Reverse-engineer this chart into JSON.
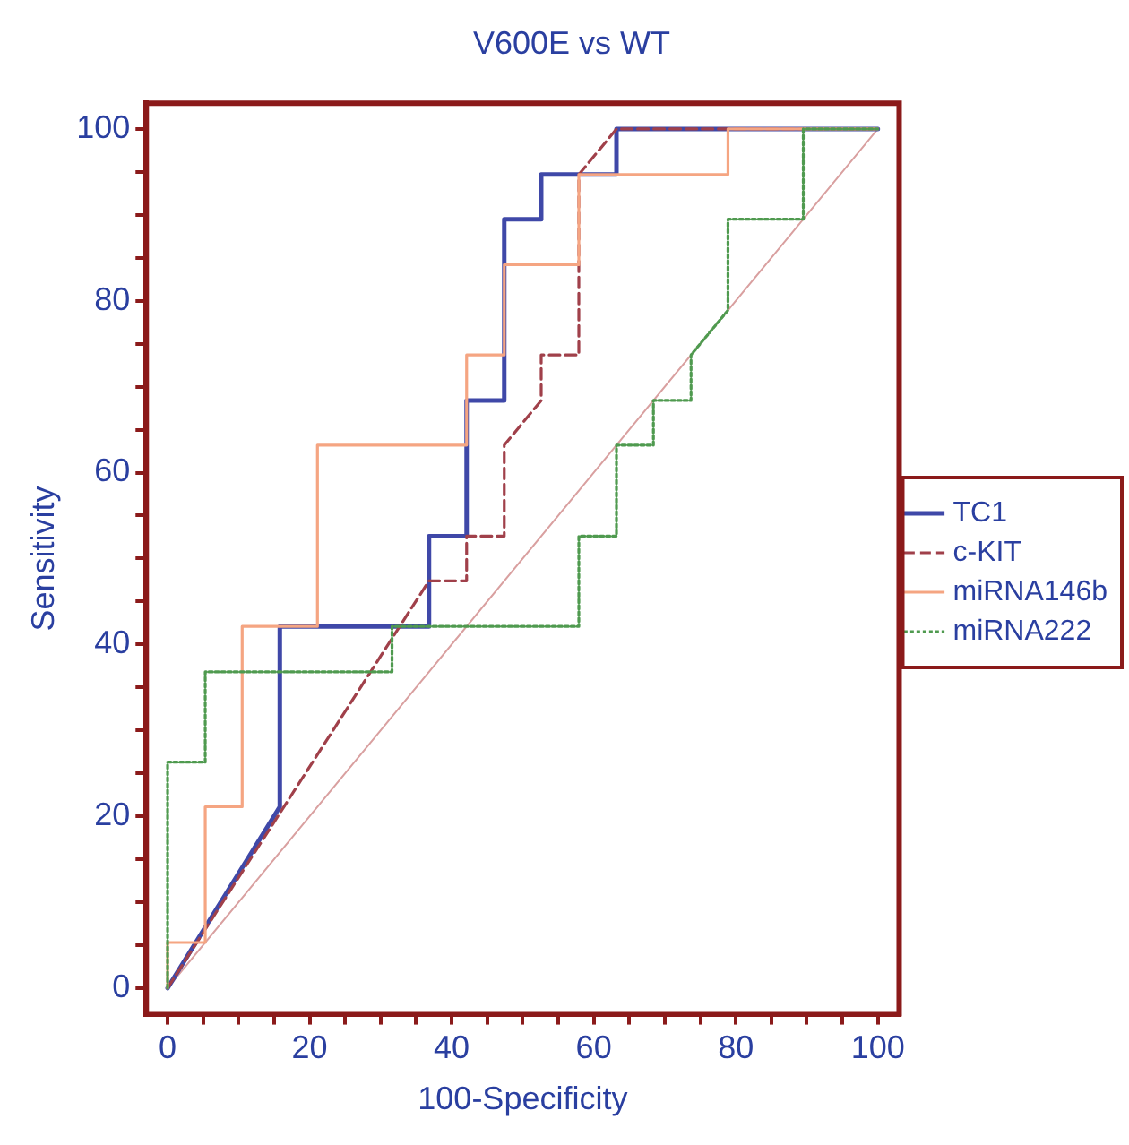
{
  "chart_data": {
    "type": "line",
    "title": "V600E vs WT",
    "xlabel": "100-Specificity",
    "ylabel": "Sensitivity",
    "xlim": [
      -3,
      103
    ],
    "ylim": [
      -3,
      103
    ],
    "xticks": [
      0,
      {
        "value": 5,
        "label": null
      },
      {
        "value": 10,
        "label": null
      },
      {
        "value": 15,
        "label": null
      },
      20,
      {
        "value": 25,
        "label": null
      },
      {
        "value": 30,
        "label": null
      },
      {
        "value": 35,
        "label": null
      },
      40,
      {
        "value": 45,
        "label": null
      },
      {
        "value": 50,
        "label": null
      },
      {
        "value": 55,
        "label": null
      },
      60,
      {
        "value": 65,
        "label": null
      },
      {
        "value": 70,
        "label": null
      },
      {
        "value": 75,
        "label": null
      },
      80,
      {
        "value": 85,
        "label": null
      },
      {
        "value": 90,
        "label": null
      },
      {
        "value": 95,
        "label": null
      },
      100
    ],
    "yticks": [
      0,
      {
        "value": 5,
        "label": null
      },
      {
        "value": 10,
        "label": null
      },
      {
        "value": 15,
        "label": null
      },
      20,
      {
        "value": 25,
        "label": null
      },
      {
        "value": 30,
        "label": null
      },
      {
        "value": 35,
        "label": null
      },
      40,
      {
        "value": 45,
        "label": null
      },
      {
        "value": 50,
        "label": null
      },
      {
        "value": 55,
        "label": null
      },
      60,
      {
        "value": 65,
        "label": null
      },
      {
        "value": 70,
        "label": null
      },
      {
        "value": 75,
        "label": null
      },
      80,
      {
        "value": 85,
        "label": null
      },
      {
        "value": 90,
        "label": null
      },
      {
        "value": 95,
        "label": null
      },
      100
    ],
    "grid": false,
    "legend": "right",
    "marker": "none",
    "series": [
      {
        "name": "TC1",
        "color": "#3f48a8",
        "line_style": "solid",
        "x": [
          0,
          15.8,
          15.8,
          36.8,
          36.8,
          42.1,
          42.1,
          47.4,
          47.4,
          52.6,
          52.6,
          63.2,
          63.2,
          100
        ],
        "values": [
          0,
          21.1,
          42.1,
          42.1,
          52.6,
          52.6,
          68.4,
          68.4,
          89.5,
          89.5,
          94.7,
          94.7,
          100,
          100
        ]
      },
      {
        "name": "c-KIT",
        "color": "#a0404a",
        "line_style": "dashed",
        "x": [
          0,
          36.8,
          42.1,
          42.1,
          47.4,
          47.4,
          52.6,
          52.6,
          57.9,
          57.9,
          63.2,
          100
        ],
        "values": [
          0,
          47.4,
          47.4,
          52.6,
          52.6,
          63.2,
          68.4,
          73.7,
          73.7,
          94.7,
          100,
          100
        ]
      },
      {
        "name": "miRNA146b",
        "color": "#f5a582",
        "line_style": "solid",
        "x": [
          0,
          0,
          5.3,
          5.3,
          10.5,
          10.5,
          21.1,
          21.1,
          42.1,
          42.1,
          47.4,
          47.4,
          57.9,
          57.9,
          78.9,
          78.9,
          100
        ],
        "values": [
          0,
          5.3,
          5.3,
          21.1,
          21.1,
          42.1,
          42.1,
          63.2,
          63.2,
          73.7,
          73.7,
          84.2,
          84.2,
          94.7,
          94.7,
          100,
          100
        ]
      },
      {
        "name": "miRNA222",
        "color": "#4f9a4f",
        "line_style": "dotted",
        "x": [
          0,
          0,
          5.3,
          5.3,
          31.6,
          31.6,
          57.9,
          57.9,
          63.2,
          63.2,
          68.4,
          68.4,
          73.7,
          73.7,
          78.9,
          78.9,
          89.5,
          89.5,
          100
        ],
        "values": [
          0,
          26.3,
          26.3,
          36.8,
          36.8,
          42.1,
          42.1,
          52.6,
          52.6,
          63.2,
          63.2,
          68.4,
          68.4,
          73.7,
          78.9,
          89.5,
          89.5,
          100,
          100
        ]
      },
      {
        "color": "#d9a0a0",
        "line_style": "solid",
        "x": [
          0,
          100
        ],
        "values": [
          0,
          100
        ]
      }
    ]
  }
}
